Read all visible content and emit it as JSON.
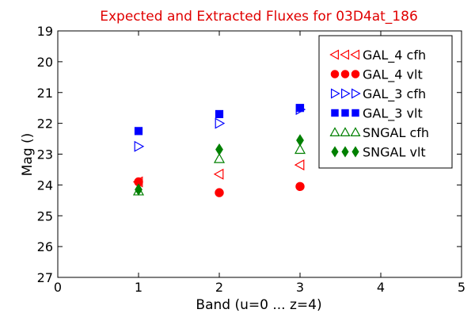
{
  "chart_data": {
    "type": "scatter",
    "title": "Expected and Extracted Fluxes for 03D4at_186",
    "xlabel": "Band (u=0 ... z=4)",
    "ylabel": "Mag ()",
    "xlim": [
      0,
      5
    ],
    "ylim": [
      27,
      19
    ],
    "y_inverted": true,
    "x_ticks": [
      "0",
      "1",
      "2",
      "3",
      "4",
      "5"
    ],
    "y_ticks": [
      "19",
      "20",
      "21",
      "22",
      "23",
      "24",
      "25",
      "26",
      "27"
    ],
    "grid": false,
    "legend_position": "top-right",
    "series": [
      {
        "name": "GAL_4 cfh",
        "marker": "triangle-left",
        "filled": false,
        "color": "#ff0000",
        "points": [
          [
            1,
            23.9
          ],
          [
            2,
            23.65
          ],
          [
            3,
            23.35
          ]
        ]
      },
      {
        "name": "GAL_4 vlt",
        "marker": "circle",
        "filled": true,
        "color": "#ff0000",
        "points": [
          [
            1,
            23.9
          ],
          [
            2,
            24.25
          ],
          [
            3,
            24.05
          ]
        ]
      },
      {
        "name": "GAL_3 cfh",
        "marker": "triangle-right",
        "filled": false,
        "color": "#0000ff",
        "points": [
          [
            1,
            22.75
          ],
          [
            2,
            22.0
          ],
          [
            3,
            21.55
          ]
        ]
      },
      {
        "name": "GAL_3 vlt",
        "marker": "square",
        "filled": true,
        "color": "#0000ff",
        "points": [
          [
            1,
            22.25
          ],
          [
            2,
            21.7
          ],
          [
            3,
            21.5
          ]
        ]
      },
      {
        "name": "SNGAL cfh",
        "marker": "triangle-up",
        "filled": false,
        "color": "#008000",
        "points": [
          [
            1,
            24.2
          ],
          [
            2,
            23.15
          ],
          [
            3,
            22.85
          ]
        ]
      },
      {
        "name": "SNGAL vlt",
        "marker": "diamond",
        "filled": true,
        "color": "#008000",
        "points": [
          [
            1,
            24.15
          ],
          [
            2,
            22.85
          ],
          [
            3,
            22.55
          ]
        ]
      }
    ]
  }
}
